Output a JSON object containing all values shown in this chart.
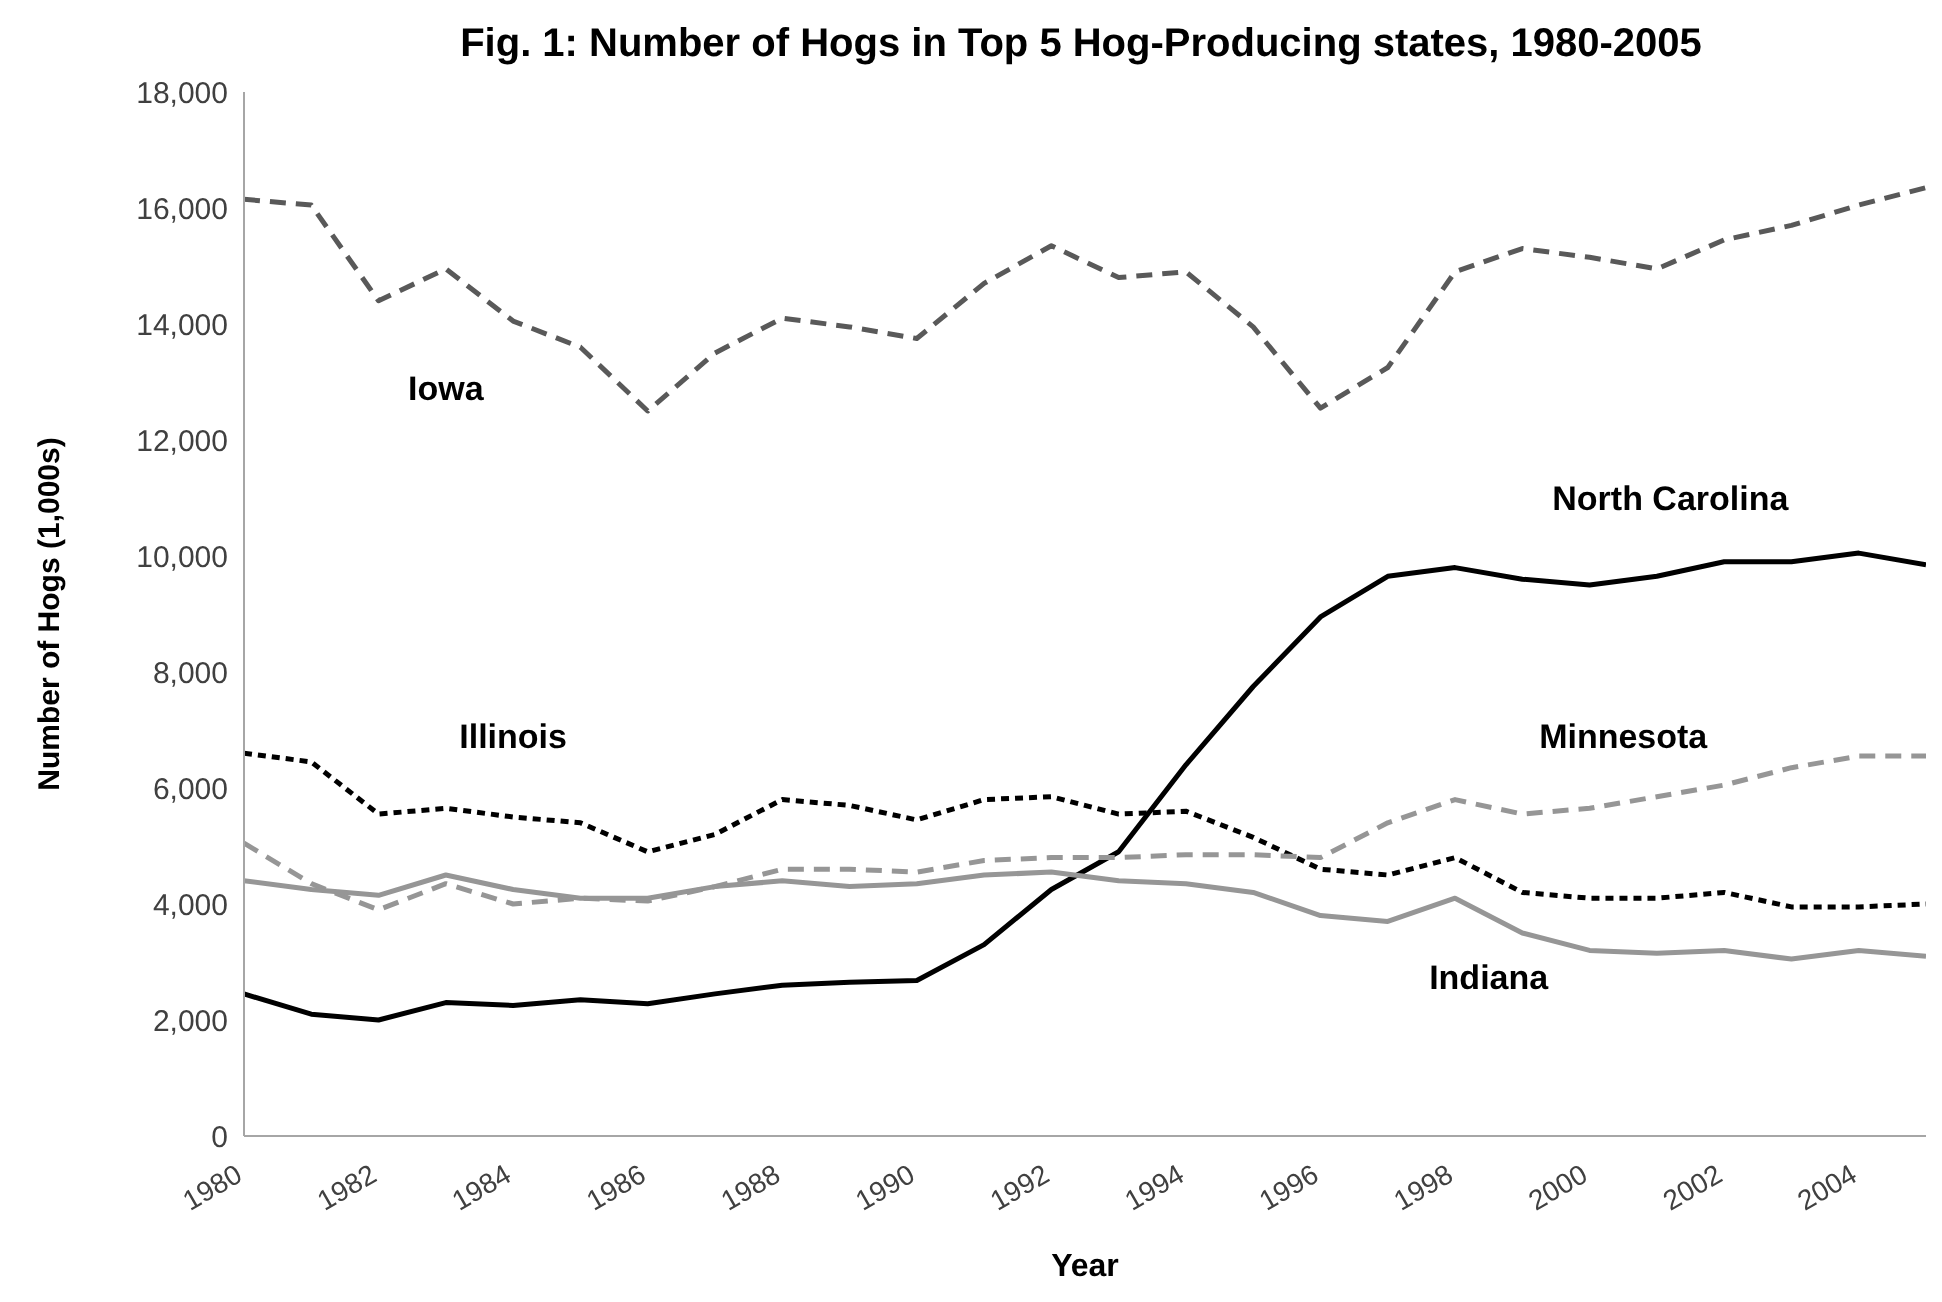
{
  "chart_data": {
    "type": "line",
    "title": "Fig. 1:  Number of Hogs in Top 5 Hog-Producing states, 1980-2005",
    "xlabel": "Year",
    "ylabel": "Number of Hogs (1,000s)",
    "x": [
      1980,
      1981,
      1982,
      1983,
      1984,
      1985,
      1986,
      1987,
      1988,
      1989,
      1990,
      1991,
      1992,
      1993,
      1994,
      1995,
      1996,
      1997,
      1998,
      1999,
      2000,
      2001,
      2002,
      2003,
      2004,
      2005
    ],
    "xlim": [
      1980,
      2005
    ],
    "xticks": [
      1980,
      1982,
      1984,
      1986,
      1988,
      1990,
      1992,
      1994,
      1996,
      1998,
      2000,
      2002,
      2004
    ],
    "ylim": [
      0,
      18000
    ],
    "yticks": [
      {
        "value": 0,
        "label": "0"
      },
      {
        "value": 2000,
        "label": "2,000"
      },
      {
        "value": 4000,
        "label": "4,000"
      },
      {
        "value": 6000,
        "label": "6,000"
      },
      {
        "value": 8000,
        "label": "8,000"
      },
      {
        "value": 10000,
        "label": "10,000"
      },
      {
        "value": 12000,
        "label": "12,000"
      },
      {
        "value": 14000,
        "label": "14,000"
      },
      {
        "value": 16000,
        "label": "16,000"
      },
      {
        "value": 18000,
        "label": "18,000"
      }
    ],
    "grid": false,
    "legend": false,
    "marker": "none",
    "series": [
      {
        "name": "Iowa",
        "color": "#595959",
        "line_style": "dashed",
        "values": [
          16150,
          16050,
          14400,
          14950,
          14050,
          13600,
          12500,
          13500,
          14100,
          13950,
          13750,
          14700,
          15350,
          14800,
          14900,
          13950,
          12550,
          13250,
          14900,
          15300,
          15150,
          14950,
          15450,
          15700,
          16050,
          16350
        ]
      },
      {
        "name": "North Carolina",
        "color": "#000000",
        "line_style": "solid",
        "values": [
          2450,
          2100,
          2000,
          2300,
          2250,
          2350,
          2280,
          2450,
          2600,
          2650,
          2680,
          3300,
          4250,
          4900,
          6400,
          7750,
          8950,
          9650,
          9800,
          9600,
          9500,
          9650,
          9900,
          9900,
          10050,
          9850
        ]
      },
      {
        "name": "Illinois",
        "color": "#000000",
        "line_style": "dotted",
        "values": [
          6600,
          6450,
          5550,
          5650,
          5500,
          5400,
          4900,
          5200,
          5800,
          5700,
          5450,
          5800,
          5850,
          5550,
          5600,
          5150,
          4600,
          4500,
          4800,
          4200,
          4100,
          4100,
          4200,
          3950,
          3950,
          4000
        ]
      },
      {
        "name": "Minnesota",
        "color": "#969696",
        "line_style": "dashed",
        "values": [
          5050,
          4350,
          3900,
          4350,
          4000,
          4100,
          4050,
          4300,
          4600,
          4600,
          4550,
          4750,
          4800,
          4800,
          4850,
          4850,
          4800,
          5400,
          5800,
          5550,
          5650,
          5850,
          6050,
          6350,
          6550,
          6550
        ]
      },
      {
        "name": "Indiana",
        "color": "#969696",
        "line_style": "solid",
        "values": [
          4400,
          4250,
          4150,
          4500,
          4250,
          4100,
          4100,
          4300,
          4400,
          4300,
          4350,
          4500,
          4550,
          4400,
          4350,
          4200,
          3800,
          3700,
          4100,
          3500,
          3200,
          3150,
          3200,
          3050,
          3200,
          3100
        ]
      }
    ]
  }
}
